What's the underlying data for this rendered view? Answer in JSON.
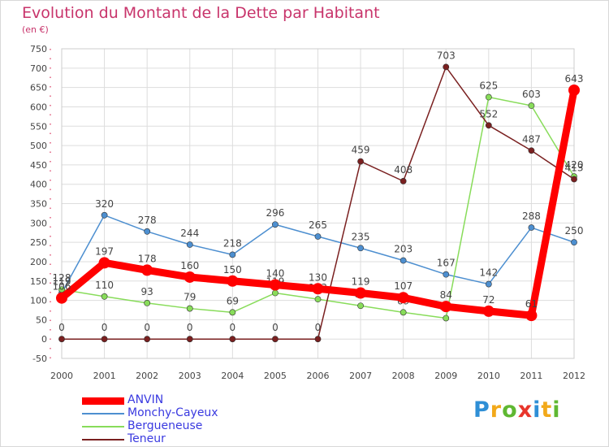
{
  "title": "Evolution du Montant de la Dette par Habitant",
  "subtitle": "(en €)",
  "logo": {
    "text": "Proxiti",
    "letters": [
      {
        "char": "P",
        "color": "#2f8fd6"
      },
      {
        "char": "r",
        "color": "#f2a91a"
      },
      {
        "char": "o",
        "color": "#5fb832"
      },
      {
        "char": "x",
        "color": "#e8352b"
      },
      {
        "char": "i",
        "color": "#2f8fd6"
      },
      {
        "char": "t",
        "color": "#f2a91a"
      },
      {
        "char": "i",
        "color": "#5fb832"
      }
    ]
  },
  "chart_data": {
    "type": "line",
    "title": "Evolution du Montant de la Dette par Habitant",
    "ylabel": "(en €)",
    "x": [
      "2000",
      "2001",
      "2002",
      "2003",
      "2004",
      "2005",
      "2006",
      "2007",
      "2008",
      "2009",
      "2010",
      "2011",
      "2012"
    ],
    "ylim": [
      -50,
      750
    ],
    "yticks": [
      -50,
      0,
      50,
      100,
      150,
      200,
      250,
      300,
      350,
      400,
      450,
      500,
      550,
      600,
      650,
      700,
      750
    ],
    "grid": true,
    "legend_position": "bottom-left",
    "series": [
      {
        "name": "ANVIN",
        "color": "#ff0000",
        "emphasis": true,
        "values": [
          106,
          197,
          178,
          160,
          150,
          140,
          130,
          119,
          107,
          84,
          72,
          61,
          643
        ]
      },
      {
        "name": "Monchy-Cayeux",
        "color": "#4d8fd0",
        "emphasis": false,
        "values": [
          119,
          320,
          278,
          244,
          218,
          296,
          265,
          235,
          203,
          167,
          142,
          288,
          250
        ]
      },
      {
        "name": "Bergueneuse",
        "color": "#88dc5a",
        "emphasis": false,
        "values": [
          128,
          110,
          93,
          79,
          69,
          119,
          103,
          86,
          69,
          54,
          625,
          603,
          420
        ]
      },
      {
        "name": "Teneur",
        "color": "#7a2020",
        "emphasis": false,
        "values": [
          0,
          0,
          0,
          0,
          0,
          0,
          0,
          459,
          408,
          703,
          552,
          487,
          413
        ]
      }
    ]
  }
}
